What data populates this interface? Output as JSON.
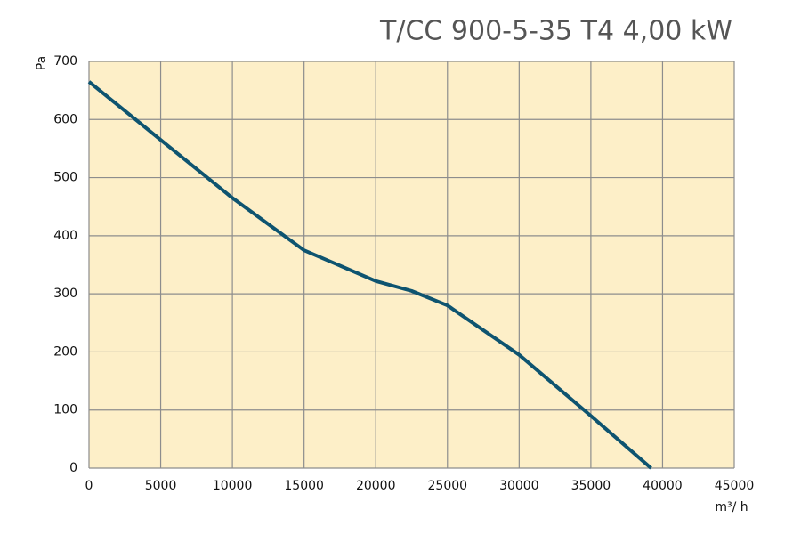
{
  "chart_data": {
    "type": "line",
    "title": "T/CC 900-5-35 T4  4,00 kW",
    "xlabel": "m³/ h",
    "ylabel": "Pa",
    "x": [
      0,
      5000,
      10000,
      15000,
      20000,
      22500,
      25000,
      30000,
      35000,
      39200
    ],
    "series": [
      {
        "name": "T/CC 900-5-35 T4",
        "color": "#0e5470",
        "values": [
          665,
          565,
          465,
          375,
          322,
          305,
          280,
          195,
          90,
          0
        ]
      }
    ],
    "xlim": [
      0,
      45000
    ],
    "xticks": [
      0,
      5000,
      10000,
      15000,
      20000,
      25000,
      30000,
      35000,
      40000,
      45000
    ],
    "ylim": [
      0,
      700
    ],
    "yticks": [
      0,
      100,
      200,
      300,
      400,
      500,
      600,
      700
    ],
    "grid": true,
    "background": "#fdefc8"
  }
}
